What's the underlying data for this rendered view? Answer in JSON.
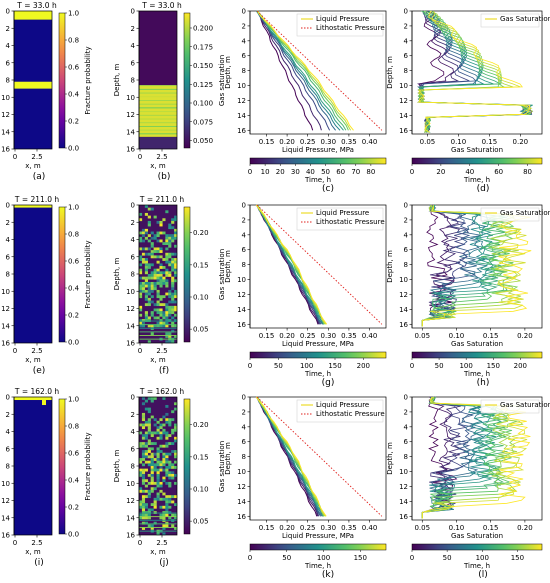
{
  "chart_data": [
    {
      "type": "heatmap",
      "panel": "a",
      "title": "T = 33.0 h",
      "panel_label": "(a)",
      "xlabel": "x, m",
      "ylabel": "Depth, m",
      "x_ticks": [
        "0",
        "2.5"
      ],
      "y_ticks": [
        "0",
        "2",
        "4",
        "6",
        "8",
        "10",
        "12",
        "14",
        "16"
      ],
      "colorbar": {
        "label": "Fracture probability",
        "ticks": [
          "0.0",
          "0.2",
          "0.4",
          "0.6",
          "0.8",
          "1.0"
        ],
        "range": [
          0,
          1
        ],
        "colormap": "plasma"
      },
      "bands": [
        {
          "depth_from": 0,
          "depth_to": 1.0,
          "value": 1.0
        },
        {
          "depth_from": 8.2,
          "depth_to": 9.0,
          "value": 1.0
        }
      ],
      "background_value": 0.0
    },
    {
      "type": "heatmap",
      "panel": "b",
      "title": "T = 33.0 h",
      "panel_label": "(b)",
      "xlabel": "x, m",
      "ylabel": "Depth, m",
      "x_ticks": [
        "0",
        "2.5"
      ],
      "y_ticks": [
        "0",
        "2",
        "4",
        "6",
        "8",
        "10",
        "12",
        "14",
        "16"
      ],
      "colorbar": {
        "label": "Gas saturation",
        "ticks": [
          "0.050",
          "0.075",
          "0.100",
          "0.125",
          "0.150",
          "0.175",
          "0.200"
        ],
        "range": [
          0.04,
          0.22
        ],
        "colormap": "viridis"
      },
      "bands": [
        {
          "depth_from": 0,
          "depth_to": 8.6,
          "value": 0.045
        },
        {
          "depth_from": 8.6,
          "depth_to": 14.6,
          "value": 0.21
        },
        {
          "depth_from": 14.6,
          "depth_to": 16,
          "value": 0.06
        }
      ]
    },
    {
      "type": "line",
      "panel": "c",
      "panel_label": "(c)",
      "xlabel": "Liquid Pressure, MPa",
      "ylabel": "Depth, m",
      "x_ticks": [
        "0.15",
        "0.20",
        "0.25",
        "0.30",
        "0.35",
        "0.40"
      ],
      "y_ticks": [
        "0",
        "2",
        "4",
        "6",
        "8",
        "10",
        "12",
        "14",
        "16"
      ],
      "xlim": [
        0.11,
        0.44
      ],
      "ylim": [
        0,
        16.5
      ],
      "legend": [
        {
          "name": "Liquid Pressure",
          "style": "solid",
          "color": "#e8d400"
        },
        {
          "name": "Lithostatic Pressure",
          "style": "dotted",
          "color": "#e0201c"
        }
      ],
      "colorbar": {
        "label": "Time, h",
        "ticks": [
          "0",
          "10",
          "20",
          "30",
          "40",
          "50",
          "60",
          "70",
          "80"
        ],
        "range": [
          0,
          90
        ]
      },
      "lithostatic": {
        "x": [
          0.127,
          0.43
        ],
        "y": [
          0,
          16
        ]
      },
      "curve_family": {
        "start": [
          0.127,
          0
        ],
        "count": 10,
        "end_x": [
          0.262,
          0.285,
          0.305,
          0.318,
          0.327,
          0.335,
          0.342,
          0.35,
          0.356,
          0.362
        ],
        "end_y": 16,
        "bend_depth": 8.6
      }
    },
    {
      "type": "line",
      "panel": "d",
      "panel_label": "(d)",
      "xlabel": "Gas Saturation",
      "ylabel": "Depth, m",
      "x_ticks": [
        "0.05",
        "0.10",
        "0.15",
        "0.20"
      ],
      "y_ticks": [
        "0",
        "2",
        "4",
        "6",
        "8",
        "10",
        "12",
        "14",
        "16"
      ],
      "xlim": [
        0.025,
        0.235
      ],
      "ylim": [
        0,
        16.5
      ],
      "legend": [
        {
          "name": "Gas Saturation",
          "style": "solid",
          "color": "#e8d400"
        }
      ],
      "colorbar": {
        "label": "Time, h",
        "ticks": [
          "0",
          "20",
          "40",
          "60",
          "80"
        ],
        "range": [
          0,
          90
        ]
      }
    },
    {
      "type": "heatmap",
      "panel": "e",
      "title": "T = 211.0 h",
      "panel_label": "(e)",
      "xlabel": "x, m",
      "ylabel": "Depth, m",
      "x_ticks": [
        "0",
        "2.5"
      ],
      "y_ticks": [
        "0",
        "2",
        "4",
        "6",
        "8",
        "10",
        "12",
        "14",
        "16"
      ],
      "colorbar": {
        "label": "Fracture probability",
        "ticks": [
          "0.0",
          "0.2",
          "0.4",
          "0.6",
          "0.8",
          "1.0"
        ],
        "range": [
          0,
          1
        ],
        "colormap": "plasma"
      },
      "bands": [
        {
          "depth_from": 0,
          "depth_to": 0.3,
          "value": 1.0
        }
      ],
      "background_value": 0.0
    },
    {
      "type": "heatmap",
      "panel": "f",
      "title": "T = 211.0 h",
      "panel_label": "(f)",
      "xlabel": "x, m",
      "ylabel": "Depth, m",
      "x_ticks": [
        "0",
        "2.5"
      ],
      "y_ticks": [
        "0",
        "2",
        "4",
        "6",
        "8",
        "10",
        "12",
        "14",
        "16"
      ],
      "colorbar": {
        "label": "Gas saturation",
        "ticks": [
          "0.05",
          "0.10",
          "0.15",
          "0.20"
        ],
        "range": [
          0.03,
          0.24
        ],
        "colormap": "viridis"
      },
      "pattern": "speckled"
    },
    {
      "type": "line",
      "panel": "g",
      "panel_label": "(g)",
      "xlabel": "Liquid Pressure, MPa",
      "ylabel": "Depth, m",
      "x_ticks": [
        "0.15",
        "0.20",
        "0.25",
        "0.30",
        "0.35",
        "0.40"
      ],
      "y_ticks": [
        "0",
        "2",
        "4",
        "6",
        "8",
        "10",
        "12",
        "14",
        "16"
      ],
      "xlim": [
        0.11,
        0.44
      ],
      "ylim": [
        0,
        16.5
      ],
      "legend": [
        {
          "name": "Liquid Pressure",
          "style": "solid",
          "color": "#e8d400"
        },
        {
          "name": "Lithostatic Pressure",
          "style": "dotted",
          "color": "#e0201c"
        }
      ],
      "colorbar": {
        "label": "Time, h",
        "ticks": [
          "0",
          "50",
          "100",
          "150",
          "200"
        ],
        "range": [
          0,
          240
        ]
      },
      "lithostatic": {
        "x": [
          0.127,
          0.43
        ],
        "y": [
          0,
          16
        ]
      },
      "curve_family": {
        "start": [
          0.127,
          0
        ],
        "count": 12,
        "end_x": [
          0.275,
          0.278,
          0.281,
          0.283,
          0.285,
          0.287,
          0.289,
          0.29,
          0.291,
          0.292,
          0.293,
          0.294
        ],
        "end_y": 16,
        "bend_depth": 7.5
      }
    },
    {
      "type": "line",
      "panel": "h",
      "panel_label": "(h)",
      "xlabel": "Gas Saturation",
      "ylabel": "Depth, m",
      "x_ticks": [
        "0.05",
        "0.10",
        "0.15",
        "0.20"
      ],
      "y_ticks": [
        "0",
        "2",
        "4",
        "6",
        "8",
        "10",
        "12",
        "14",
        "16"
      ],
      "xlim": [
        0.035,
        0.225
      ],
      "ylim": [
        0,
        16.5
      ],
      "legend": [
        {
          "name": "Gas Saturation",
          "style": "solid",
          "color": "#e8d400"
        }
      ],
      "colorbar": {
        "label": "Time, h",
        "ticks": [
          "0",
          "50",
          "100",
          "150",
          "200"
        ],
        "range": [
          0,
          240
        ]
      }
    },
    {
      "type": "heatmap",
      "panel": "i",
      "title": "T = 162.0 h",
      "panel_label": "(i)",
      "xlabel": "x, m",
      "ylabel": "Depth, m",
      "x_ticks": [
        "0",
        "2.5"
      ],
      "y_ticks": [
        "0",
        "2",
        "4",
        "6",
        "8",
        "10",
        "12",
        "14",
        "16"
      ],
      "colorbar": {
        "label": "Fracture probability",
        "ticks": [
          "0.0",
          "0.2",
          "0.4",
          "0.6",
          "0.8",
          "1.0"
        ],
        "range": [
          0,
          1
        ],
        "colormap": "plasma"
      },
      "bands": [
        {
          "depth_from": 0,
          "depth_to": 0.35,
          "value": 1.0
        }
      ],
      "background_value": 0.0
    },
    {
      "type": "heatmap",
      "panel": "j",
      "title": "T = 162.0 h",
      "panel_label": "(j)",
      "xlabel": "x, m",
      "ylabel": "Depth, m",
      "x_ticks": [
        "0",
        "2.5"
      ],
      "y_ticks": [
        "0",
        "2",
        "4",
        "6",
        "8",
        "10",
        "12",
        "14",
        "16"
      ],
      "colorbar": {
        "label": "Gas saturation",
        "ticks": [
          "0.05",
          "0.10",
          "0.15",
          "0.20"
        ],
        "range": [
          0.03,
          0.24
        ],
        "colormap": "viridis"
      },
      "pattern": "speckled"
    },
    {
      "type": "line",
      "panel": "k",
      "panel_label": "(k)",
      "xlabel": "Liquid Pressure, MPa",
      "ylabel": "Depth, m",
      "x_ticks": [
        "0.15",
        "0.20",
        "0.25",
        "0.30",
        "0.35",
        "0.40"
      ],
      "y_ticks": [
        "0",
        "2",
        "4",
        "6",
        "8",
        "10",
        "12",
        "14",
        "16"
      ],
      "xlim": [
        0.11,
        0.44
      ],
      "ylim": [
        0,
        16.5
      ],
      "legend": [
        {
          "name": "Liquid Pressure",
          "style": "solid",
          "color": "#e8d400"
        },
        {
          "name": "Lithostatic Pressure",
          "style": "dotted",
          "color": "#e0201c"
        }
      ],
      "colorbar": {
        "label": "Time, h",
        "ticks": [
          "0",
          "50",
          "100",
          "150"
        ],
        "range": [
          0,
          185
        ]
      },
      "lithostatic": {
        "x": [
          0.127,
          0.43
        ],
        "y": [
          0,
          16
        ]
      },
      "curve_family": {
        "start": [
          0.127,
          0
        ],
        "count": 12,
        "end_x": [
          0.272,
          0.276,
          0.279,
          0.282,
          0.284,
          0.286,
          0.288,
          0.289,
          0.29,
          0.291,
          0.292,
          0.293
        ],
        "end_y": 16,
        "bend_depth": 7.5
      }
    },
    {
      "type": "line",
      "panel": "l",
      "panel_label": "(l)",
      "xlabel": "Gas Saturation",
      "ylabel": "Depth, m",
      "x_ticks": [
        "0.05",
        "0.10",
        "0.15",
        "0.20"
      ],
      "y_ticks": [
        "0",
        "2",
        "4",
        "6",
        "8",
        "10",
        "12",
        "14",
        "16"
      ],
      "xlim": [
        0.035,
        0.225
      ],
      "ylim": [
        0,
        16.5
      ],
      "legend": [
        {
          "name": "Gas Saturation",
          "style": "solid",
          "color": "#e8d400"
        }
      ],
      "colorbar": {
        "label": "Time, h",
        "ticks": [
          "0",
          "50",
          "100",
          "150"
        ],
        "range": [
          0,
          185
        ]
      }
    }
  ]
}
